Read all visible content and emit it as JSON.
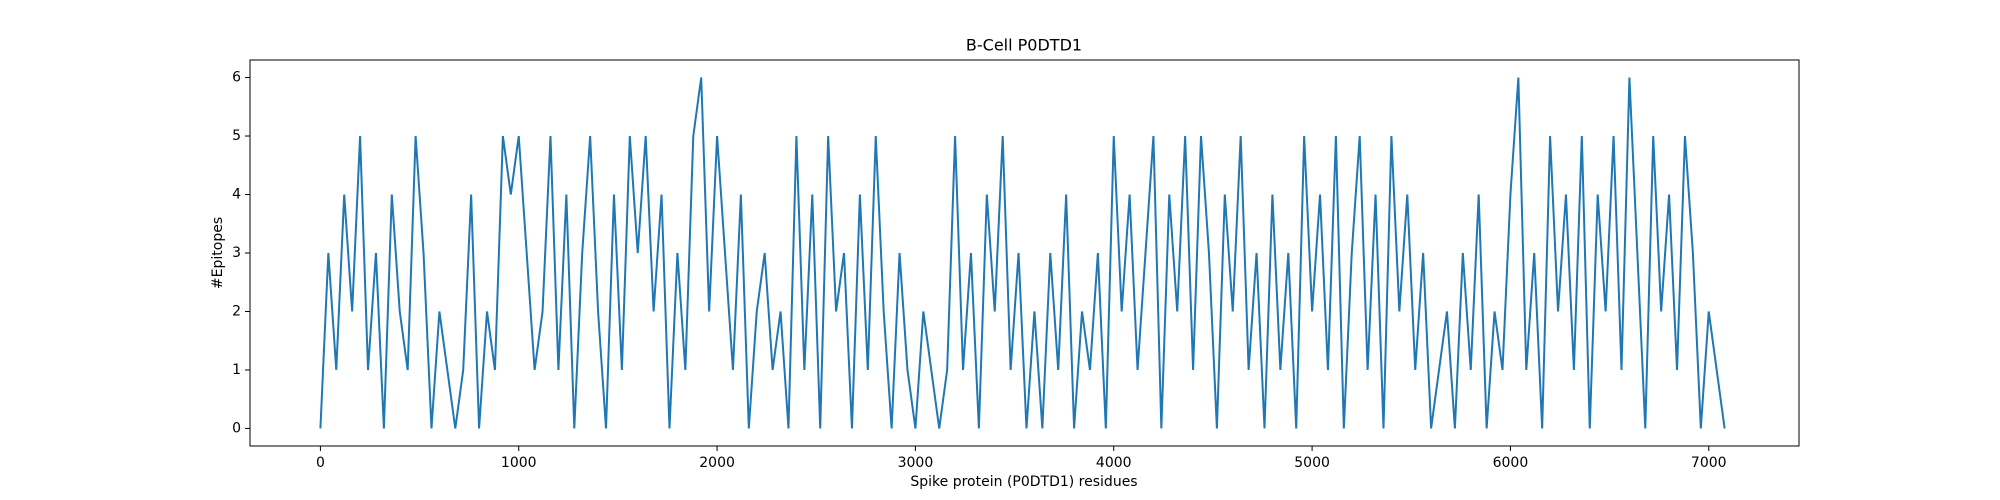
{
  "chart_data": {
    "type": "line",
    "title": "B-Cell P0DTD1",
    "xlabel": "Spike protein (P0DTD1) residues",
    "ylabel": "#Epitopes",
    "color": "#1f77b4",
    "grid": false,
    "x": [
      0,
      40,
      80,
      120,
      160,
      200,
      240,
      280,
      320,
      360,
      400,
      440,
      480,
      520,
      560,
      600,
      640,
      680,
      720,
      760,
      800,
      840,
      880,
      920,
      960,
      1000,
      1040,
      1080,
      1120,
      1160,
      1200,
      1240,
      1280,
      1320,
      1360,
      1400,
      1440,
      1480,
      1520,
      1560,
      1600,
      1640,
      1680,
      1720,
      1760,
      1800,
      1840,
      1880,
      1920,
      1960,
      2000,
      2040,
      2080,
      2120,
      2160,
      2200,
      2240,
      2280,
      2320,
      2360,
      2400,
      2440,
      2480,
      2520,
      2560,
      2600,
      2640,
      2680,
      2720,
      2760,
      2800,
      2840,
      2880,
      2920,
      2960,
      3000,
      3040,
      3080,
      3120,
      3160,
      3200,
      3240,
      3280,
      3320,
      3360,
      3400,
      3440,
      3480,
      3520,
      3560,
      3600,
      3640,
      3680,
      3720,
      3760,
      3800,
      3840,
      3880,
      3920,
      3960,
      4000,
      4040,
      4080,
      4120,
      4160,
      4200,
      4240,
      4280,
      4320,
      4360,
      4400,
      4440,
      4480,
      4520,
      4560,
      4600,
      4640,
      4680,
      4720,
      4760,
      4800,
      4840,
      4880,
      4920,
      4960,
      5000,
      5040,
      5080,
      5120,
      5160,
      5200,
      5240,
      5280,
      5320,
      5360,
      5400,
      5440,
      5480,
      5520,
      5560,
      5600,
      5640,
      5680,
      5720,
      5760,
      5800,
      5840,
      5880,
      5920,
      5960,
      6000,
      6040,
      6080,
      6120,
      6160,
      6200,
      6240,
      6280,
      6320,
      6360,
      6400,
      6440,
      6480,
      6520,
      6560,
      6600,
      6640,
      6680,
      6720,
      6760,
      6800,
      6840,
      6880,
      6920,
      6960,
      7000,
      7040,
      7080
    ],
    "values": [
      0,
      3,
      1,
      4,
      2,
      5,
      1,
      3,
      0,
      4,
      2,
      1,
      5,
      3,
      0,
      2,
      1,
      0,
      1,
      4,
      0,
      2,
      1,
      5,
      4,
      5,
      3,
      1,
      2,
      5,
      1,
      4,
      0,
      3,
      5,
      2,
      0,
      4,
      1,
      5,
      3,
      5,
      2,
      4,
      0,
      3,
      1,
      5,
      6,
      2,
      5,
      3,
      1,
      4,
      0,
      2,
      3,
      1,
      2,
      0,
      5,
      1,
      4,
      0,
      5,
      2,
      3,
      0,
      4,
      1,
      5,
      2,
      0,
      3,
      1,
      0,
      2,
      1,
      0,
      1,
      5,
      1,
      3,
      0,
      4,
      2,
      5,
      1,
      3,
      0,
      2,
      0,
      3,
      1,
      4,
      0,
      2,
      1,
      3,
      0,
      5,
      2,
      4,
      1,
      3,
      5,
      0,
      4,
      2,
      5,
      1,
      5,
      3,
      0,
      4,
      2,
      5,
      1,
      3,
      0,
      4,
      1,
      3,
      0,
      5,
      2,
      4,
      1,
      5,
      0,
      3,
      5,
      1,
      4,
      0,
      5,
      2,
      4,
      1,
      3,
      0,
      1,
      2,
      0,
      3,
      1,
      4,
      0,
      2,
      1,
      4,
      6,
      1,
      3,
      0,
      5,
      2,
      4,
      1,
      5,
      0,
      4,
      2,
      5,
      1,
      6,
      3,
      0,
      5,
      2,
      4,
      1,
      5,
      3,
      0,
      2,
      1,
      0
    ],
    "xlim": [
      -355,
      7455
    ],
    "ylim": [
      -0.3,
      6.3
    ],
    "xticks": [
      0,
      1000,
      2000,
      3000,
      4000,
      5000,
      6000,
      7000
    ],
    "yticks": [
      0,
      1,
      2,
      3,
      4,
      5,
      6
    ]
  }
}
